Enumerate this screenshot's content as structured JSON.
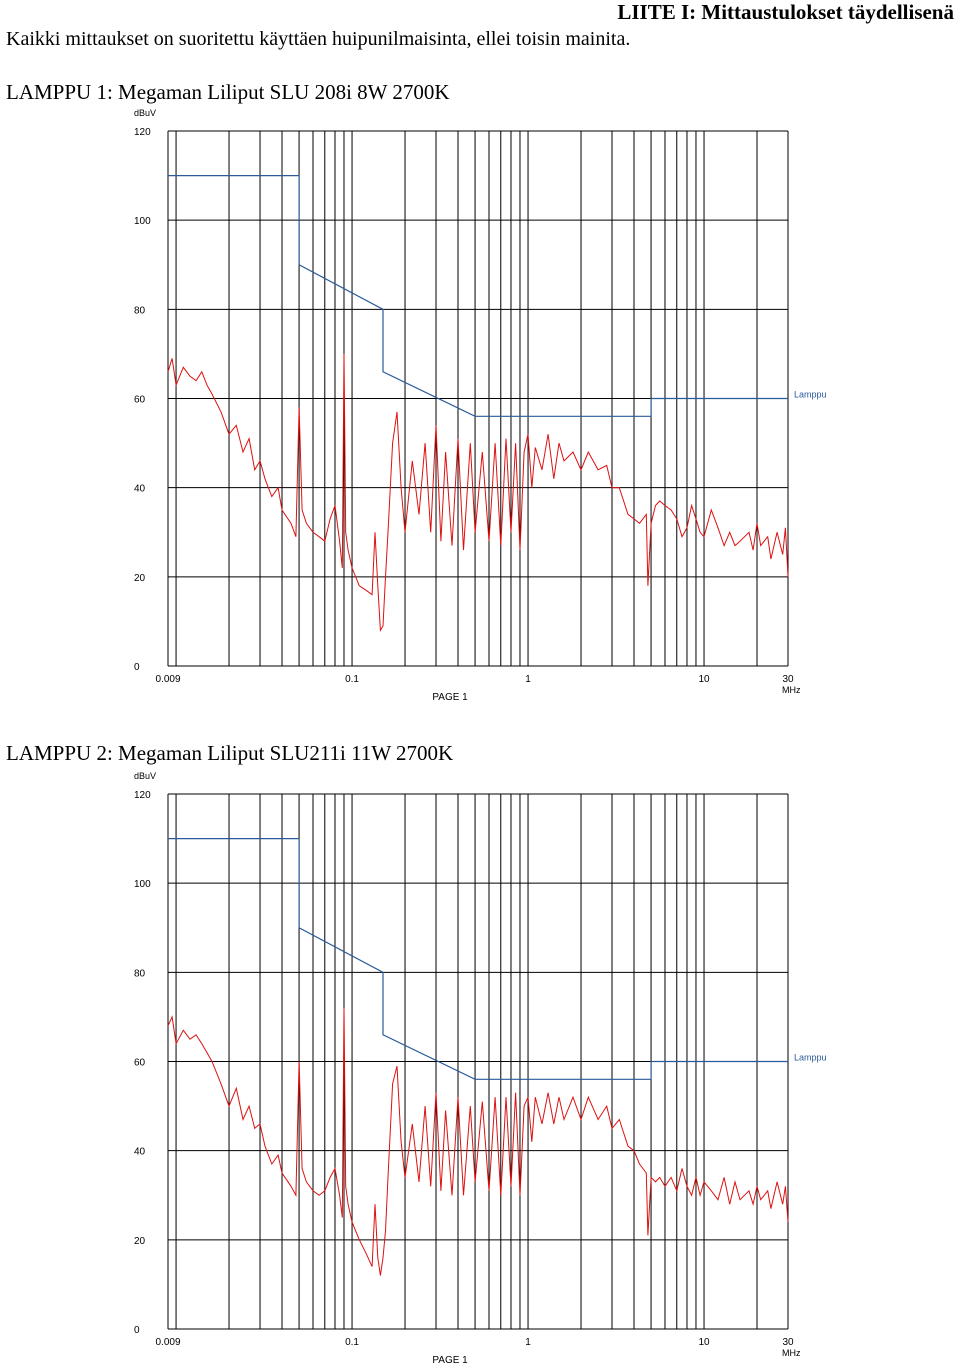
{
  "page": {
    "header": "LIITE I: Mittaustulokset täydellisenä",
    "intro": "Kaikki mittaukset on suoritettu käyttäen huipunilmaisinta, ellei toisin mainita."
  },
  "charts": [
    {
      "heading": "LAMPPU 1: Megaman Liliput SLU 208i 8W 2700K"
    },
    {
      "heading": "LAMPPU 2: Megaman Liliput SLU211i 11W 2700K"
    }
  ],
  "chart_data": [
    {
      "type": "line",
      "title": "LAMPPU 1: Megaman Liliput SLU 208i 8W 2700K",
      "ylabel": "dBuV",
      "xlabel": "MHz",
      "footer": "PAGE 1",
      "x_scale": "log",
      "xlim": [
        0.009,
        30
      ],
      "ylim": [
        0,
        120
      ],
      "x_ticks": [
        0.009,
        0.1,
        1,
        10,
        30
      ],
      "x_tick_labels": [
        "0.009",
        "0.1",
        "1",
        "10",
        "30"
      ],
      "y_ticks": [
        0,
        20,
        40,
        60,
        80,
        100,
        120
      ],
      "y_tick_labels": [
        "0",
        "20",
        "40",
        "60",
        "80",
        "100",
        "120"
      ],
      "grid": true,
      "colors": {
        "measurement": "#dd1111",
        "limit": "#2a5a9a",
        "grid": "#000000"
      },
      "limit_line": {
        "name": "Lamppu",
        "points": [
          [
            0.009,
            110
          ],
          [
            0.05,
            110
          ],
          [
            0.05,
            90
          ],
          [
            0.15,
            80
          ],
          [
            0.15,
            66
          ],
          [
            0.5,
            56
          ],
          [
            5,
            56
          ],
          [
            5,
            60
          ],
          [
            30,
            60
          ]
        ]
      },
      "series": [
        {
          "points": [
            [
              0.009,
              66
            ],
            [
              0.0095,
              69
            ],
            [
              0.01,
              63
            ],
            [
              0.011,
              67
            ],
            [
              0.012,
              65
            ],
            [
              0.013,
              64
            ],
            [
              0.014,
              66
            ],
            [
              0.015,
              63
            ],
            [
              0.016,
              61
            ],
            [
              0.018,
              57
            ],
            [
              0.02,
              52
            ],
            [
              0.022,
              54
            ],
            [
              0.024,
              48
            ],
            [
              0.026,
              51
            ],
            [
              0.028,
              44
            ],
            [
              0.03,
              46
            ],
            [
              0.032,
              42
            ],
            [
              0.035,
              38
            ],
            [
              0.038,
              40
            ],
            [
              0.04,
              35
            ],
            [
              0.045,
              32
            ],
            [
              0.048,
              29
            ],
            [
              0.05,
              58
            ],
            [
              0.052,
              35
            ],
            [
              0.055,
              32
            ],
            [
              0.06,
              30
            ],
            [
              0.065,
              29
            ],
            [
              0.07,
              28
            ],
            [
              0.075,
              33
            ],
            [
              0.08,
              36
            ],
            [
              0.085,
              28
            ],
            [
              0.088,
              22
            ],
            [
              0.09,
              70
            ],
            [
              0.092,
              30
            ],
            [
              0.095,
              26
            ],
            [
              0.1,
              22
            ],
            [
              0.11,
              18
            ],
            [
              0.12,
              17
            ],
            [
              0.13,
              16
            ],
            [
              0.135,
              30
            ],
            [
              0.14,
              18
            ],
            [
              0.145,
              8
            ],
            [
              0.15,
              9
            ],
            [
              0.155,
              20
            ],
            [
              0.16,
              30
            ],
            [
              0.17,
              50
            ],
            [
              0.18,
              57
            ],
            [
              0.19,
              40
            ],
            [
              0.2,
              30
            ],
            [
              0.22,
              46
            ],
            [
              0.24,
              34
            ],
            [
              0.26,
              50
            ],
            [
              0.28,
              30
            ],
            [
              0.3,
              54
            ],
            [
              0.32,
              28
            ],
            [
              0.34,
              48
            ],
            [
              0.37,
              27
            ],
            [
              0.4,
              51
            ],
            [
              0.43,
              26
            ],
            [
              0.47,
              50
            ],
            [
              0.5,
              30
            ],
            [
              0.55,
              48
            ],
            [
              0.6,
              28
            ],
            [
              0.65,
              50
            ],
            [
              0.7,
              27
            ],
            [
              0.75,
              51
            ],
            [
              0.8,
              30
            ],
            [
              0.85,
              50
            ],
            [
              0.9,
              26
            ],
            [
              0.95,
              48
            ],
            [
              1,
              52
            ],
            [
              1.05,
              40
            ],
            [
              1.1,
              49
            ],
            [
              1.2,
              44
            ],
            [
              1.3,
              52
            ],
            [
              1.4,
              42
            ],
            [
              1.5,
              50
            ],
            [
              1.6,
              46
            ],
            [
              1.8,
              48
            ],
            [
              2,
              44
            ],
            [
              2.2,
              48
            ],
            [
              2.5,
              44
            ],
            [
              2.8,
              45
            ],
            [
              3,
              40
            ],
            [
              3.3,
              40
            ],
            [
              3.7,
              34
            ],
            [
              4,
              33
            ],
            [
              4.3,
              32
            ],
            [
              4.7,
              34
            ],
            [
              4.8,
              18
            ],
            [
              5,
              32
            ],
            [
              5.3,
              36
            ],
            [
              5.6,
              37
            ],
            [
              6,
              36
            ],
            [
              6.5,
              35
            ],
            [
              7,
              33
            ],
            [
              7.5,
              29
            ],
            [
              8,
              31
            ],
            [
              8.5,
              36
            ],
            [
              9,
              33
            ],
            [
              9.5,
              30
            ],
            [
              10,
              29
            ],
            [
              11,
              35
            ],
            [
              12,
              31
            ],
            [
              13,
              27
            ],
            [
              14,
              30
            ],
            [
              15,
              27
            ],
            [
              16,
              28
            ],
            [
              18,
              30
            ],
            [
              19,
              26
            ],
            [
              20,
              32
            ],
            [
              21,
              27
            ],
            [
              23,
              29
            ],
            [
              24,
              24
            ],
            [
              26,
              30
            ],
            [
              28,
              25
            ],
            [
              29,
              31
            ],
            [
              30,
              20
            ]
          ]
        }
      ]
    },
    {
      "type": "line",
      "title": "LAMPPU 2: Megaman Liliput SLU211i 11W 2700K",
      "ylabel": "dBuV",
      "xlabel": "MHz",
      "footer": "PAGE 1",
      "x_scale": "log",
      "xlim": [
        0.009,
        30
      ],
      "ylim": [
        0,
        120
      ],
      "x_ticks": [
        0.009,
        0.1,
        1,
        10,
        30
      ],
      "x_tick_labels": [
        "0.009",
        "0.1",
        "1",
        "10",
        "30"
      ],
      "y_ticks": [
        0,
        20,
        40,
        60,
        80,
        100,
        120
      ],
      "y_tick_labels": [
        "0",
        "20",
        "40",
        "60",
        "80",
        "100",
        "120"
      ],
      "grid": true,
      "colors": {
        "measurement": "#dd1111",
        "limit": "#2a5a9a",
        "grid": "#000000"
      },
      "limit_line": {
        "name": "Lamppu",
        "points": [
          [
            0.009,
            110
          ],
          [
            0.05,
            110
          ],
          [
            0.05,
            90
          ],
          [
            0.15,
            80
          ],
          [
            0.15,
            66
          ],
          [
            0.5,
            56
          ],
          [
            5,
            56
          ],
          [
            5,
            60
          ],
          [
            30,
            60
          ]
        ]
      },
      "series": [
        {
          "points": [
            [
              0.009,
              68
            ],
            [
              0.0095,
              70
            ],
            [
              0.01,
              64
            ],
            [
              0.011,
              67
            ],
            [
              0.012,
              65
            ],
            [
              0.013,
              66
            ],
            [
              0.014,
              64
            ],
            [
              0.015,
              62
            ],
            [
              0.016,
              60
            ],
            [
              0.018,
              55
            ],
            [
              0.02,
              50
            ],
            [
              0.022,
              54
            ],
            [
              0.024,
              47
            ],
            [
              0.026,
              50
            ],
            [
              0.028,
              45
            ],
            [
              0.03,
              46
            ],
            [
              0.032,
              41
            ],
            [
              0.035,
              37
            ],
            [
              0.038,
              39
            ],
            [
              0.04,
              35
            ],
            [
              0.045,
              32
            ],
            [
              0.048,
              30
            ],
            [
              0.05,
              60
            ],
            [
              0.052,
              36
            ],
            [
              0.055,
              33
            ],
            [
              0.06,
              31
            ],
            [
              0.065,
              30
            ],
            [
              0.07,
              31
            ],
            [
              0.075,
              34
            ],
            [
              0.08,
              36
            ],
            [
              0.085,
              30
            ],
            [
              0.088,
              25
            ],
            [
              0.09,
              72
            ],
            [
              0.092,
              32
            ],
            [
              0.095,
              28
            ],
            [
              0.1,
              24
            ],
            [
              0.11,
              20
            ],
            [
              0.12,
              17
            ],
            [
              0.13,
              14
            ],
            [
              0.135,
              28
            ],
            [
              0.14,
              16
            ],
            [
              0.145,
              12
            ],
            [
              0.15,
              16
            ],
            [
              0.155,
              22
            ],
            [
              0.16,
              34
            ],
            [
              0.17,
              55
            ],
            [
              0.18,
              59
            ],
            [
              0.19,
              42
            ],
            [
              0.2,
              34
            ],
            [
              0.22,
              46
            ],
            [
              0.24,
              33
            ],
            [
              0.26,
              50
            ],
            [
              0.28,
              32
            ],
            [
              0.3,
              53
            ],
            [
              0.32,
              31
            ],
            [
              0.34,
              49
            ],
            [
              0.37,
              30
            ],
            [
              0.4,
              52
            ],
            [
              0.43,
              30
            ],
            [
              0.47,
              50
            ],
            [
              0.5,
              33
            ],
            [
              0.55,
              51
            ],
            [
              0.6,
              31
            ],
            [
              0.65,
              52
            ],
            [
              0.7,
              30
            ],
            [
              0.75,
              52
            ],
            [
              0.8,
              32
            ],
            [
              0.85,
              53
            ],
            [
              0.9,
              30
            ],
            [
              0.95,
              50
            ],
            [
              1,
              52
            ],
            [
              1.05,
              42
            ],
            [
              1.1,
              52
            ],
            [
              1.2,
              46
            ],
            [
              1.3,
              53
            ],
            [
              1.4,
              46
            ],
            [
              1.5,
              52
            ],
            [
              1.6,
              47
            ],
            [
              1.8,
              52
            ],
            [
              2,
              47
            ],
            [
              2.2,
              52
            ],
            [
              2.5,
              47
            ],
            [
              2.8,
              50
            ],
            [
              3,
              45
            ],
            [
              3.3,
              47
            ],
            [
              3.7,
              41
            ],
            [
              4,
              40
            ],
            [
              4.3,
              37
            ],
            [
              4.7,
              35
            ],
            [
              4.8,
              21
            ],
            [
              5,
              34
            ],
            [
              5.3,
              33
            ],
            [
              5.6,
              34
            ],
            [
              6,
              32
            ],
            [
              6.5,
              34
            ],
            [
              7,
              31
            ],
            [
              7.5,
              36
            ],
            [
              8,
              32
            ],
            [
              8.5,
              30
            ],
            [
              9,
              34
            ],
            [
              9.5,
              30
            ],
            [
              10,
              33
            ],
            [
              11,
              31
            ],
            [
              12,
              29
            ],
            [
              13,
              34
            ],
            [
              14,
              28
            ],
            [
              15,
              33
            ],
            [
              16,
              29
            ],
            [
              18,
              31
            ],
            [
              19,
              28
            ],
            [
              20,
              32
            ],
            [
              21,
              29
            ],
            [
              23,
              31
            ],
            [
              24,
              27
            ],
            [
              26,
              33
            ],
            [
              28,
              28
            ],
            [
              29,
              32
            ],
            [
              30,
              24
            ]
          ]
        }
      ]
    }
  ]
}
